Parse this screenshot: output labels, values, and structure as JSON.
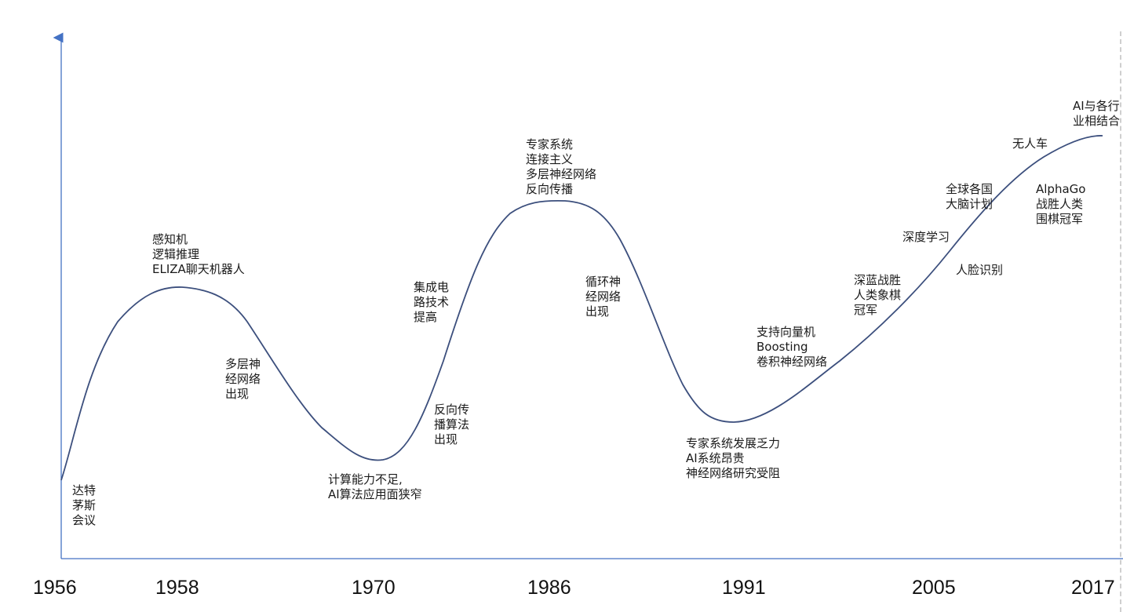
{
  "timeline": {
    "years": [
      "1956",
      "1958",
      "1970",
      "1986",
      "1991",
      "2005",
      "2017"
    ],
    "curve_color": "#3c4f7d",
    "axis_color": "#4472c4",
    "events": [
      {
        "id": "dartmouth",
        "lines": [
          "达特",
          "茅斯",
          "会议"
        ]
      },
      {
        "id": "perceptron",
        "lines": [
          "感知机",
          "逻辑推理",
          "ELIZA聊天机器人"
        ]
      },
      {
        "id": "multilayer-1",
        "lines": [
          "多层神",
          "经网络",
          "出现"
        ]
      },
      {
        "id": "compute-shortage",
        "lines": [
          "计算能力不足,",
          "AI算法应用面狭窄"
        ]
      },
      {
        "id": "circuit-tech",
        "lines": [
          "集成电",
          "路技术",
          "提高"
        ]
      },
      {
        "id": "backprop-algo",
        "lines": [
          "反向传",
          "播算法",
          "出现"
        ]
      },
      {
        "id": "expert-systems",
        "lines": [
          "专家系统",
          "连接主义",
          "多层神经网络",
          "反向传播"
        ]
      },
      {
        "id": "rnn",
        "lines": [
          "循环神",
          "经网络",
          "出现"
        ]
      },
      {
        "id": "expert-decline",
        "lines": [
          "专家系统发展乏力",
          "AI系统昂贵",
          "神经网络研究受阻"
        ]
      },
      {
        "id": "svm",
        "lines": [
          "支持向量机",
          "Boosting",
          "卷积神经网络"
        ]
      },
      {
        "id": "deep-blue",
        "lines": [
          "深蓝战胜",
          "人类象棋",
          "冠军"
        ]
      },
      {
        "id": "deep-learning",
        "lines": [
          "深度学习"
        ]
      },
      {
        "id": "brain-plan",
        "lines": [
          "全球各国",
          "大脑计划"
        ]
      },
      {
        "id": "face-recognition",
        "lines": [
          "人脸识别"
        ]
      },
      {
        "id": "driverless",
        "lines": [
          "无人车"
        ]
      },
      {
        "id": "alphago",
        "lines": [
          "AlphaGo",
          "战胜人类",
          "围棋冠军"
        ]
      },
      {
        "id": "ai-industry",
        "lines": [
          "AI与各行",
          "业相结合"
        ]
      }
    ]
  }
}
